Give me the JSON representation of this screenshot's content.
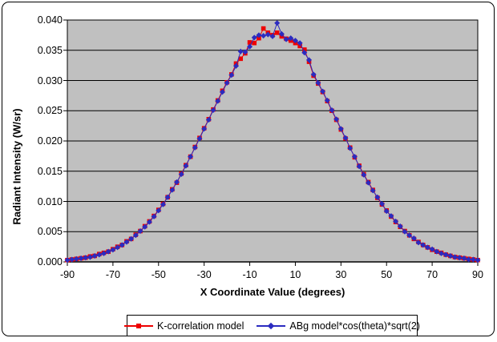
{
  "chart": {
    "y_axis_title": "Radiant Intensity (W/sr)",
    "x_axis_title": "X Coordinate Value (degrees)",
    "plot_bg_color": "#c0c0c0",
    "gridline_color": "#000000",
    "y_ticks": [
      "0.040",
      "0.035",
      "0.030",
      "0.025",
      "0.020",
      "0.015",
      "0.010",
      "0.005",
      "0.000"
    ],
    "x_ticks": [
      "-90",
      "-70",
      "-50",
      "-30",
      "-10",
      "10",
      "30",
      "50",
      "70",
      "90"
    ]
  },
  "legend": {
    "items": [
      {
        "label": "K-correlation model",
        "color": "#ee0000",
        "marker": "square"
      },
      {
        "label": "ABg model*cos(theta)*sqrt(2)",
        "color": "#2b2bc0",
        "marker": "diamond"
      }
    ]
  },
  "chart_data": {
    "type": "line",
    "title": "",
    "xlabel": "X Coordinate Value (degrees)",
    "ylabel": "Radiant Intensity (W/sr)",
    "xlim": [
      -90,
      90
    ],
    "ylim": [
      0,
      0.04
    ],
    "y_tick_step": 0.005,
    "x_tick_step": 20,
    "grid": "horizontal",
    "legend_position": "bottom",
    "x": [
      -90,
      -88,
      -86,
      -84,
      -82,
      -80,
      -78,
      -76,
      -74,
      -72,
      -70,
      -68,
      -66,
      -64,
      -62,
      -60,
      -58,
      -56,
      -54,
      -52,
      -50,
      -48,
      -46,
      -44,
      -42,
      -40,
      -38,
      -36,
      -34,
      -32,
      -30,
      -28,
      -26,
      -24,
      -22,
      -20,
      -18,
      -16,
      -14,
      -12,
      -10,
      -8,
      -6,
      -4,
      -2,
      0,
      2,
      4,
      6,
      8,
      10,
      12,
      14,
      16,
      18,
      20,
      22,
      24,
      26,
      28,
      30,
      32,
      34,
      36,
      38,
      40,
      42,
      44,
      46,
      48,
      50,
      52,
      54,
      56,
      58,
      60,
      62,
      64,
      66,
      68,
      70,
      72,
      74,
      76,
      78,
      80,
      82,
      84,
      86,
      88,
      90
    ],
    "series": [
      {
        "name": "K-correlation model",
        "color": "#ee0000",
        "marker": "square",
        "values": [
          0.0003,
          0.0004,
          0.0005,
          0.0006,
          0.0007,
          0.0009,
          0.001,
          0.0013,
          0.0015,
          0.0017,
          0.0021,
          0.0025,
          0.0028,
          0.0034,
          0.0038,
          0.0045,
          0.0051,
          0.0059,
          0.0067,
          0.0076,
          0.0086,
          0.0096,
          0.0107,
          0.012,
          0.0131,
          0.0146,
          0.016,
          0.0174,
          0.019,
          0.0205,
          0.0221,
          0.0236,
          0.0252,
          0.0267,
          0.0283,
          0.0297,
          0.031,
          0.0328,
          0.0336,
          0.0345,
          0.0363,
          0.0362,
          0.037,
          0.0386,
          0.0379,
          0.0375,
          0.0379,
          0.0373,
          0.0369,
          0.0366,
          0.0362,
          0.0357,
          0.0351,
          0.0331,
          0.0308,
          0.0295,
          0.0281,
          0.0266,
          0.025,
          0.0235,
          0.0219,
          0.0204,
          0.0189,
          0.0173,
          0.0159,
          0.0145,
          0.0132,
          0.0119,
          0.0106,
          0.0095,
          0.0085,
          0.0075,
          0.0066,
          0.0058,
          0.0051,
          0.0044,
          0.0038,
          0.0033,
          0.0028,
          0.0024,
          0.002,
          0.0017,
          0.0015,
          0.0012,
          0.001,
          0.0008,
          0.0007,
          0.0006,
          0.0005,
          0.0004,
          0.0003
        ]
      },
      {
        "name": "ABg model*cos(theta)*sqrt(2)",
        "color": "#2b2bc0",
        "marker": "diamond",
        "values": [
          0.0003,
          0.0004,
          0.0005,
          0.0006,
          0.0007,
          0.0008,
          0.001,
          0.0012,
          0.0014,
          0.0017,
          0.002,
          0.0024,
          0.0028,
          0.0033,
          0.0038,
          0.0044,
          0.0051,
          0.0058,
          0.0066,
          0.0075,
          0.0085,
          0.0095,
          0.0107,
          0.0119,
          0.0132,
          0.0145,
          0.0159,
          0.0174,
          0.0189,
          0.0204,
          0.022,
          0.0235,
          0.0251,
          0.0266,
          0.0281,
          0.0296,
          0.0309,
          0.0324,
          0.0348,
          0.0347,
          0.0356,
          0.0371,
          0.0375,
          0.0374,
          0.0376,
          0.0373,
          0.0395,
          0.0377,
          0.0368,
          0.037,
          0.0366,
          0.0362,
          0.0346,
          0.0334,
          0.031,
          0.0296,
          0.0282,
          0.0267,
          0.0251,
          0.0236,
          0.022,
          0.0205,
          0.0188,
          0.0174,
          0.0158,
          0.0144,
          0.0131,
          0.0118,
          0.0107,
          0.0096,
          0.0084,
          0.0076,
          0.0067,
          0.0059,
          0.005,
          0.0044,
          0.0039,
          0.0032,
          0.0028,
          0.0024,
          0.0021,
          0.0017,
          0.0014,
          0.0012,
          0.001,
          0.0008,
          0.0007,
          0.0006,
          0.0004,
          0.0004,
          0.0003
        ]
      }
    ]
  }
}
